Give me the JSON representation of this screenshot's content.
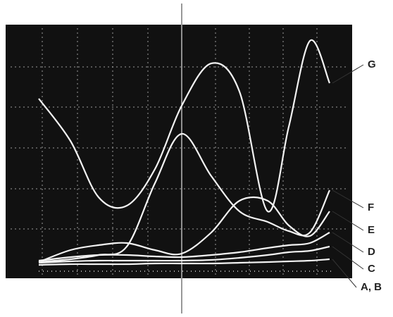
{
  "chart_data": {
    "type": "line",
    "x": [
      35,
      80,
      120,
      160,
      200,
      238,
      280,
      320,
      360,
      390,
      420,
      448
    ],
    "xlim": [
      0,
      460
    ],
    "ylim": [
      0,
      345
    ],
    "series": [
      {
        "name": "G",
        "color": "#f2f2f2",
        "values": [
          245,
          185,
          105,
          93,
          145,
          235,
          295,
          255,
          85,
          205,
          327,
          267
        ]
      },
      {
        "name": "F",
        "color": "#f2f2f2",
        "values": [
          13,
          17,
          23,
          35,
          125,
          195,
          135,
          85,
          70,
          57,
          55,
          115
        ]
      },
      {
        "name": "E",
        "color": "#f2f2f2",
        "values": [
          13,
          30,
          37,
          40,
          30,
          25,
          55,
          100,
          100,
          65,
          50,
          85
        ]
      },
      {
        "name": "D",
        "color": "#f2f2f2",
        "values": [
          15,
          20,
          23,
          23,
          21,
          20,
          23,
          27,
          33,
          37,
          40,
          55
        ]
      },
      {
        "name": "C",
        "color": "#f2f2f2",
        "values": [
          12,
          14,
          15,
          15,
          15,
          15,
          16,
          19,
          23,
          27,
          29,
          35
        ]
      },
      {
        "name": "A, B",
        "color": "#f2f2f2",
        "values": [
          9,
          10,
          10,
          10,
          11,
          11,
          11,
          12,
          13,
          14,
          15,
          17
        ]
      }
    ]
  }
}
